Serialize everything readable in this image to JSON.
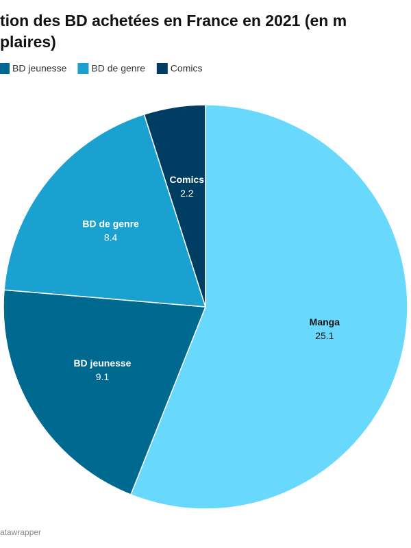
{
  "chart_data": {
    "type": "pie",
    "title": [
      "tion des BD achetées en France en 2021 (en m",
      "plaires)"
    ],
    "categories": [
      "Manga",
      "BD jeunesse",
      "BD de genre",
      "Comics"
    ],
    "values": [
      25.1,
      9.1,
      8.4,
      2.2
    ],
    "colors": [
      "#69d8fd",
      "#00698f",
      "#1ba1cf",
      "#003d63"
    ],
    "label_colors": [
      "#111111",
      "#ffffff",
      "#ffffff",
      "#ffffff"
    ],
    "source": "atawrapper"
  }
}
